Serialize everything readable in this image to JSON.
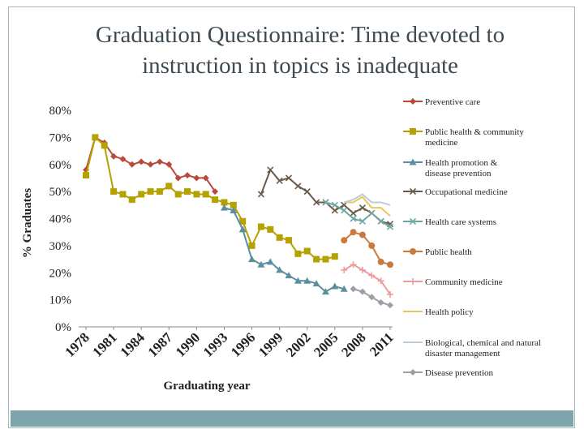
{
  "slide": {
    "title_line1": "Graduation Questionnaire: Time devoted to",
    "title_line2": "instruction in topics is inadequate"
  },
  "chart_data": {
    "type": "line",
    "xlabel": "Graduating year",
    "ylabel": "% Graduates",
    "ylim": [
      0,
      80
    ],
    "xlim": [
      1978,
      2011
    ],
    "yticks": [
      "0%",
      "10%",
      "20%",
      "30%",
      "40%",
      "50%",
      "60%",
      "70%",
      "80%"
    ],
    "xticks": [
      "1978",
      "1981",
      "1984",
      "1987",
      "1990",
      "1993",
      "1996",
      "1999",
      "2002",
      "2005",
      "2008",
      "2011"
    ],
    "legend_position": "right",
    "series": [
      {
        "name": "Preventive care",
        "color": "#b94a3b",
        "marker": "diamond",
        "x": [
          1978,
          1979,
          1980,
          1981,
          1982,
          1983,
          1984,
          1985,
          1986,
          1987,
          1988,
          1989,
          1990,
          1991,
          1992
        ],
        "values": [
          58,
          70,
          68,
          63,
          62,
          60,
          61,
          60,
          61,
          60,
          55,
          56,
          55,
          55,
          50
        ]
      },
      {
        "name": "Public health & community medicine",
        "color": "#b5a100",
        "marker": "square",
        "x": [
          1978,
          1979,
          1980,
          1981,
          1982,
          1983,
          1984,
          1985,
          1986,
          1987,
          1988,
          1989,
          1990,
          1991,
          1992,
          1993,
          1994,
          1995,
          1996,
          1997,
          1998,
          1999,
          2000,
          2001,
          2002,
          2003,
          2004,
          2005
        ],
        "values": [
          56,
          70,
          67,
          50,
          49,
          47,
          49,
          50,
          50,
          52,
          49,
          50,
          49,
          49,
          47,
          46,
          45,
          39,
          30,
          37,
          36,
          33,
          32,
          27,
          28,
          25,
          25,
          26
        ]
      },
      {
        "name": "Health promotion & disease prevention",
        "color": "#5a8fa0",
        "marker": "triangle",
        "x": [
          1993,
          1994,
          1995,
          1996,
          1997,
          1998,
          1999,
          2000,
          2001,
          2002,
          2003,
          2004,
          2005,
          2006
        ],
        "values": [
          44,
          43,
          36,
          25,
          23,
          24,
          21,
          19,
          17,
          17,
          16,
          13,
          15,
          14
        ]
      },
      {
        "name": "Occupational medicine",
        "color": "#6b5a4a",
        "marker": "x",
        "x": [
          1997,
          1998,
          1999,
          2000,
          2001,
          2002,
          2003,
          2004,
          2005,
          2006,
          2007,
          2008,
          2009,
          2010,
          2011
        ],
        "values": [
          49,
          58,
          54,
          55,
          52,
          50,
          46,
          46,
          43,
          45,
          42,
          44,
          42,
          39,
          38
        ]
      },
      {
        "name": "Health care systems",
        "color": "#6fa6a2",
        "marker": "x",
        "x": [
          2004,
          2005,
          2006,
          2007,
          2008,
          2009,
          2010,
          2011
        ],
        "values": [
          46,
          45,
          43,
          40,
          39,
          42,
          39,
          37
        ]
      },
      {
        "name": "Public health",
        "color": "#c97a3e",
        "marker": "circle",
        "x": [
          2006,
          2007,
          2008,
          2009,
          2010,
          2011
        ],
        "values": [
          32,
          35,
          34,
          30,
          24,
          23
        ]
      },
      {
        "name": "Community medicine",
        "color": "#ef9b9b",
        "marker": "plus",
        "x": [
          2006,
          2007,
          2008,
          2009,
          2010,
          2011
        ],
        "values": [
          21,
          23,
          21,
          19,
          17,
          12
        ]
      },
      {
        "name": "Health policy",
        "color": "#e6c85a",
        "marker": "none",
        "x": [
          2006,
          2007,
          2008,
          2009,
          2010,
          2011
        ],
        "values": [
          46,
          46,
          48,
          44,
          44,
          41
        ]
      },
      {
        "name": "Biological, chemical and natural disaster management",
        "color": "#bcccd8",
        "marker": "none",
        "x": [
          2006,
          2007,
          2008,
          2009,
          2010,
          2011
        ],
        "values": [
          46,
          47,
          49,
          46,
          46,
          45
        ]
      },
      {
        "name": "Disease prevention",
        "color": "#9aa0a6",
        "marker": "diamond",
        "x": [
          2007,
          2008,
          2009,
          2010,
          2011
        ],
        "values": [
          14,
          13,
          11,
          9,
          8
        ]
      }
    ]
  }
}
